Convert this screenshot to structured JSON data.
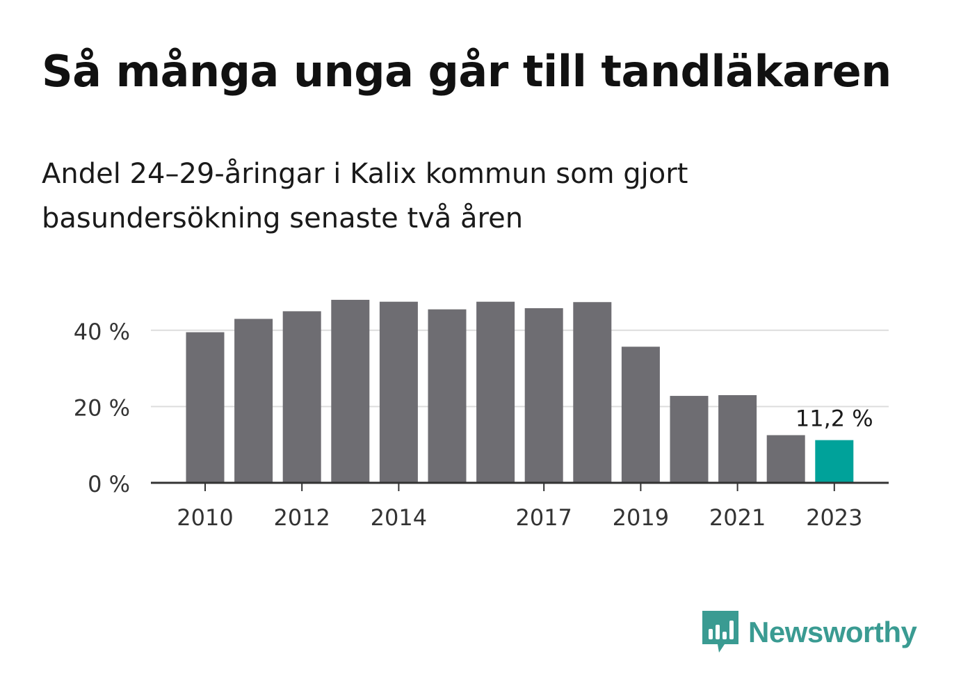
{
  "title": "Så många unga går till tandläkaren",
  "subtitle": "Andel 24–29-åringar i Kalix kommun som gjort basundersökning senaste två åren",
  "brand": {
    "name": "Newsworthy",
    "icon": "newsworthy-bar-chart-icon"
  },
  "colors": {
    "bar": "#6e6d72",
    "highlight": "#00a29a",
    "grid": "#dddddd",
    "axis": "#333333",
    "brand": "#3a9b92"
  },
  "chart_data": {
    "type": "bar",
    "categories": [
      "2010",
      "2011",
      "2012",
      "2013",
      "2014",
      "2015",
      "2016",
      "2017",
      "2018",
      "2019",
      "2020",
      "2021",
      "2022",
      "2023"
    ],
    "values": [
      39.5,
      43,
      45,
      48,
      47.5,
      45.5,
      47.5,
      45.8,
      47.4,
      35.7,
      22.8,
      23,
      12.5,
      11.2
    ],
    "highlight_index": 13,
    "data_labels": [
      {
        "category": "2023",
        "text": "11,2 %"
      }
    ],
    "x_tick_labels": [
      "2010",
      "2012",
      "2014",
      "2017",
      "2019",
      "2021",
      "2023"
    ],
    "y_ticks": [
      0,
      20,
      40
    ],
    "y_tick_labels": [
      "0 %",
      "20 %",
      "40 %"
    ],
    "ylim": [
      0,
      50
    ],
    "xlabel": "",
    "ylabel": "",
    "grid": true,
    "legend": "none"
  }
}
